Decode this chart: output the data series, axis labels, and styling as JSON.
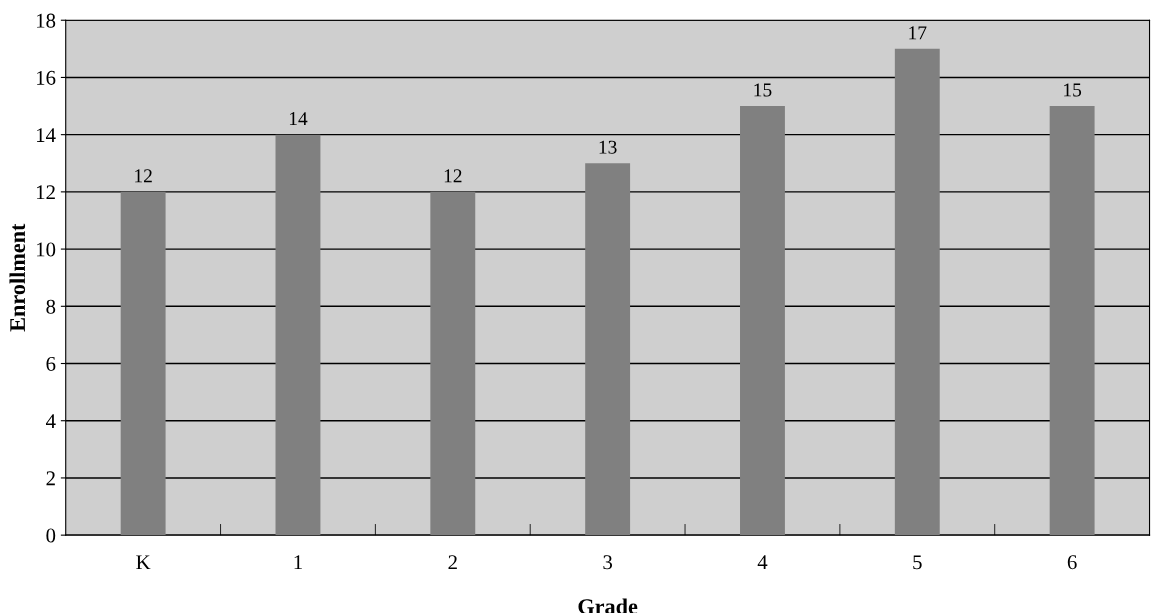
{
  "chart_data": {
    "type": "bar",
    "xlabel": "Grade",
    "ylabel": "Enrollment",
    "categories": [
      "K",
      "1",
      "2",
      "3",
      "4",
      "5",
      "6"
    ],
    "values": [
      12,
      14,
      12,
      13,
      15,
      17,
      15
    ],
    "color": "#808080",
    "ylim": [
      0,
      18
    ],
    "yticks": [
      0,
      2,
      4,
      6,
      8,
      10,
      12,
      14,
      16,
      18
    ],
    "grid": "y",
    "data_labels": true
  }
}
